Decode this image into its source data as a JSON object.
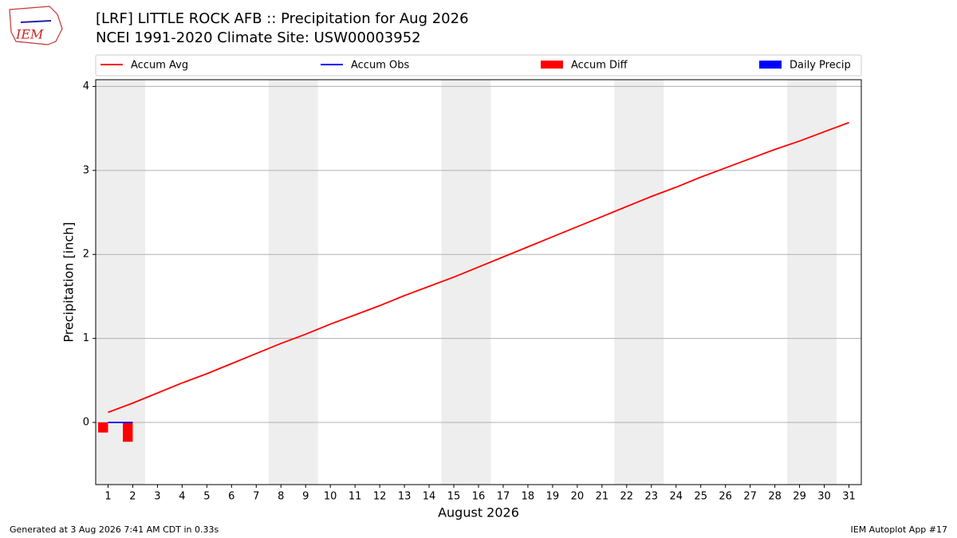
{
  "chart_data": {
    "type": "line",
    "title": "[LRF] LITTLE ROCK AFB :: Precipitation for Aug 2026",
    "subtitle": "NCEI 1991-2020 Climate Site: USW00003952",
    "xlabel": "August 2026",
    "ylabel": "Precipitation [inch]",
    "x": [
      1,
      2,
      3,
      4,
      5,
      6,
      7,
      8,
      9,
      10,
      11,
      12,
      13,
      14,
      15,
      16,
      17,
      18,
      19,
      20,
      21,
      22,
      23,
      24,
      25,
      26,
      27,
      28,
      29,
      30,
      31
    ],
    "xlim": [
      0.5,
      31.5
    ],
    "xticks": [
      1,
      2,
      3,
      4,
      5,
      6,
      7,
      8,
      9,
      10,
      11,
      12,
      13,
      14,
      15,
      16,
      17,
      18,
      19,
      20,
      21,
      22,
      23,
      24,
      25,
      26,
      27,
      28,
      29,
      30,
      31
    ],
    "ylim": [
      -0.74,
      4.08
    ],
    "yticks": [
      0,
      1,
      2,
      3,
      4
    ],
    "grid": true,
    "legend": "top",
    "shaded_ranges": [
      [
        0.5,
        2.5
      ],
      [
        7.5,
        9.5
      ],
      [
        14.5,
        16.5
      ],
      [
        21.5,
        23.5
      ],
      [
        28.5,
        30.5
      ]
    ],
    "shade_color": "#eeeeee",
    "series": [
      {
        "name": "Accum Avg",
        "type": "line",
        "color": "#ff0000",
        "values": [
          0.12,
          0.23,
          0.35,
          0.47,
          0.58,
          0.7,
          0.82,
          0.94,
          1.05,
          1.17,
          1.28,
          1.39,
          1.51,
          1.62,
          1.73,
          1.85,
          1.97,
          2.09,
          2.21,
          2.33,
          2.45,
          2.57,
          2.69,
          2.8,
          2.92,
          3.03,
          3.14,
          3.25,
          3.35,
          3.46,
          3.57
        ]
      },
      {
        "name": "Accum Obs",
        "type": "line",
        "color": "#0000ff",
        "values": [
          0,
          0,
          null,
          null,
          null,
          null,
          null,
          null,
          null,
          null,
          null,
          null,
          null,
          null,
          null,
          null,
          null,
          null,
          null,
          null,
          null,
          null,
          null,
          null,
          null,
          null,
          null,
          null,
          null,
          null,
          null
        ]
      },
      {
        "name": "Accum Diff",
        "type": "bar",
        "color": "#ff0000",
        "values": [
          -0.12,
          -0.23,
          null,
          null,
          null,
          null,
          null,
          null,
          null,
          null,
          null,
          null,
          null,
          null,
          null,
          null,
          null,
          null,
          null,
          null,
          null,
          null,
          null,
          null,
          null,
          null,
          null,
          null,
          null,
          null,
          null
        ]
      },
      {
        "name": "Daily Precip",
        "type": "bar",
        "color": "#0000ff",
        "values": [
          0,
          0,
          null,
          null,
          null,
          null,
          null,
          null,
          null,
          null,
          null,
          null,
          null,
          null,
          null,
          null,
          null,
          null,
          null,
          null,
          null,
          null,
          null,
          null,
          null,
          null,
          null,
          null,
          null,
          null,
          null
        ]
      }
    ]
  },
  "logo_text": "IEM",
  "footer": {
    "left": "Generated at 3 Aug 2026 7:41 AM CDT in 0.33s",
    "right": "IEM Autoplot App #17"
  }
}
